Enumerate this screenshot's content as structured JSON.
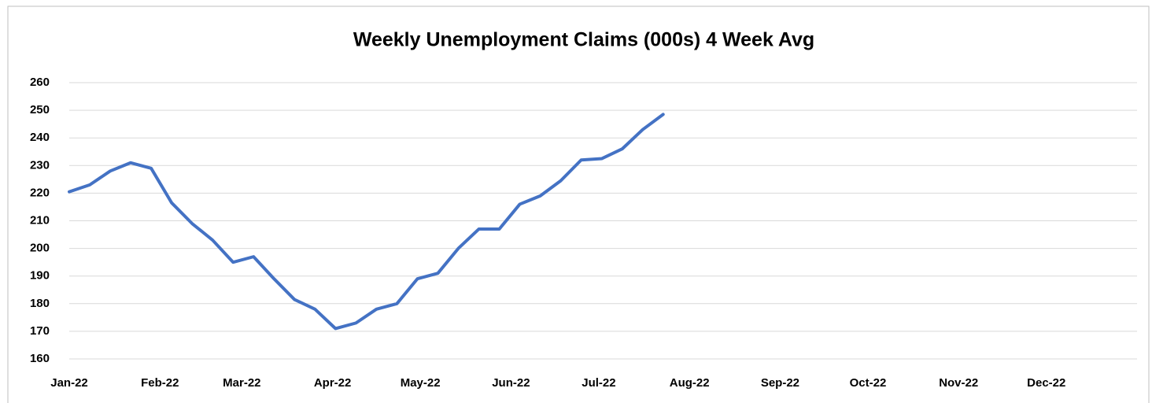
{
  "chart_data": {
    "type": "line",
    "title": "Weekly Unemployment Claims (000s) 4 Week Avg",
    "x": [
      0,
      7,
      14,
      21,
      28,
      35,
      42,
      49,
      56,
      63,
      70,
      77,
      84,
      91,
      98,
      105,
      112,
      119,
      126,
      133,
      140,
      147,
      154,
      161,
      168,
      175,
      182,
      189,
      196,
      203
    ],
    "values": [
      220.5,
      223,
      228,
      231,
      229,
      216.5,
      209,
      203,
      195,
      197,
      189,
      181.5,
      178,
      171,
      173,
      178,
      180,
      189,
      191,
      200,
      207,
      207,
      216,
      219,
      224.5,
      232,
      232.5,
      236,
      243,
      248.5
    ],
    "color": "#4472c4",
    "xlim": [
      0,
      365
    ],
    "xticks": [
      {
        "value": 0,
        "label": "Jan-22"
      },
      {
        "value": 31,
        "label": "Feb-22"
      },
      {
        "value": 59,
        "label": "Mar-22"
      },
      {
        "value": 90,
        "label": "Apr-22"
      },
      {
        "value": 120,
        "label": "May-22"
      },
      {
        "value": 151,
        "label": "Jun-22"
      },
      {
        "value": 181,
        "label": "Jul-22"
      },
      {
        "value": 212,
        "label": "Aug-22"
      },
      {
        "value": 243,
        "label": "Sep-22"
      },
      {
        "value": 273,
        "label": "Oct-22"
      },
      {
        "value": 304,
        "label": "Nov-22"
      },
      {
        "value": 334,
        "label": "Dec-22"
      }
    ],
    "ylim": [
      160,
      260
    ],
    "yticks": [
      160,
      170,
      180,
      190,
      200,
      210,
      220,
      230,
      240,
      250,
      260
    ],
    "grid": true
  }
}
